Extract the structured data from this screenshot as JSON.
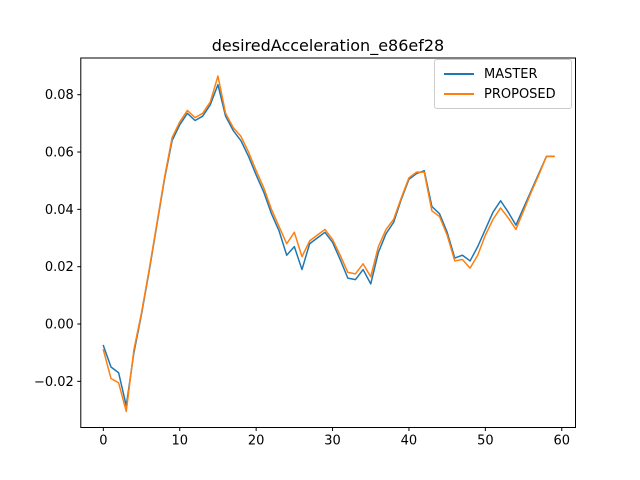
{
  "title": "desiredAcceleration_e86ef28",
  "chart_data": {
    "type": "line",
    "title": "desiredAcceleration_e86ef28",
    "xlabel": "",
    "ylabel": "",
    "grid": false,
    "x": [
      0,
      1,
      2,
      3,
      4,
      5,
      6,
      7,
      8,
      9,
      10,
      11,
      12,
      13,
      14,
      15,
      16,
      17,
      18,
      19,
      20,
      21,
      22,
      23,
      24,
      25,
      26,
      27,
      28,
      29,
      30,
      31,
      32,
      33,
      34,
      35,
      36,
      37,
      38,
      39,
      40,
      41,
      42,
      43,
      44,
      45,
      46,
      47,
      48,
      49,
      50,
      51,
      52,
      53,
      54,
      55,
      56,
      57,
      58,
      59
    ],
    "series": [
      {
        "name": "MASTER",
        "color": "#1f77b4",
        "values": [
          -0.0075,
          -0.015,
          -0.017,
          -0.0285,
          -0.01,
          0.0035,
          0.0185,
          0.0345,
          0.0505,
          0.064,
          0.0695,
          0.0735,
          0.071,
          0.0725,
          0.0765,
          0.0835,
          0.0725,
          0.0675,
          0.064,
          0.0585,
          0.052,
          0.046,
          0.0385,
          0.0325,
          0.024,
          0.027,
          0.019,
          0.028,
          0.03,
          0.032,
          0.0285,
          0.0225,
          0.016,
          0.0155,
          0.019,
          0.014,
          0.025,
          0.0315,
          0.0355,
          0.0435,
          0.0505,
          0.0525,
          0.0535,
          0.041,
          0.0385,
          0.032,
          0.023,
          0.024,
          0.022,
          0.027,
          0.033,
          0.039,
          0.043,
          0.039,
          0.0345,
          0.0405,
          0.0465,
          0.0525,
          0.0585,
          0.0585
        ]
      },
      {
        "name": "PROPOSED",
        "color": "#ff7f0e",
        "values": [
          -0.009,
          -0.019,
          -0.0205,
          -0.0305,
          -0.009,
          0.004,
          0.019,
          0.035,
          0.051,
          0.065,
          0.0705,
          0.0745,
          0.072,
          0.0735,
          0.0775,
          0.0865,
          0.0735,
          0.0685,
          0.0655,
          0.06,
          0.0535,
          0.0475,
          0.04,
          0.034,
          0.028,
          0.032,
          0.0235,
          0.029,
          0.031,
          0.033,
          0.0295,
          0.024,
          0.018,
          0.0175,
          0.021,
          0.0165,
          0.027,
          0.033,
          0.0365,
          0.044,
          0.051,
          0.053,
          0.053,
          0.0395,
          0.0375,
          0.031,
          0.022,
          0.0225,
          0.0195,
          0.024,
          0.031,
          0.0365,
          0.0405,
          0.037,
          0.033,
          0.0395,
          0.046,
          0.052,
          0.0585,
          0.0585
        ]
      }
    ],
    "xlim": [
      -2.95,
      61.8
    ],
    "ylim": [
      -0.0361,
      0.0928
    ],
    "xticks": {
      "values": [
        0,
        10,
        20,
        30,
        40,
        50,
        60
      ],
      "labels": [
        "0",
        "10",
        "20",
        "30",
        "40",
        "50",
        "60"
      ]
    },
    "yticks": {
      "values": [
        -0.02,
        0.0,
        0.02,
        0.04,
        0.06,
        0.08
      ],
      "labels": [
        "−0.02",
        "0.00",
        "0.02",
        "0.04",
        "0.06",
        "0.08"
      ]
    },
    "legend": {
      "position": "upper right",
      "entries": [
        {
          "label": "MASTER"
        },
        {
          "label": "PROPOSED"
        }
      ]
    }
  }
}
